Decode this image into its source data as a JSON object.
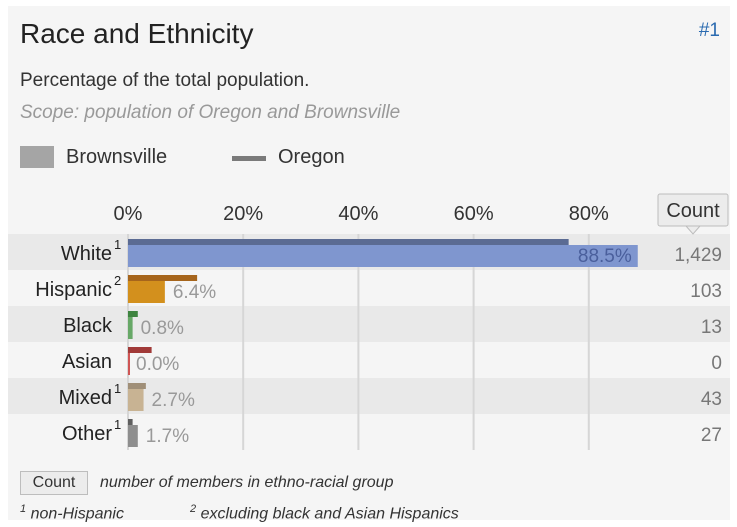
{
  "header": {
    "title": "Race and Ethnicity",
    "rank": "#1",
    "subtitle": "Percentage of the total population.",
    "scope": "Scope: population of Oregon and Brownsville"
  },
  "legend": {
    "primary": "Brownsville",
    "secondary": "Oregon"
  },
  "footer": {
    "count_chip": "Count",
    "count_note": "number of members in ethno-racial group",
    "note1_mark": "1",
    "note1_text": "non-Hispanic",
    "note2_mark": "2",
    "note2_text": "excluding black and Asian Hispanics"
  },
  "chart_data": {
    "type": "bar",
    "orientation": "horizontal",
    "categories": [
      "White",
      "Hispanic",
      "Black",
      "Asian",
      "Mixed",
      "Other"
    ],
    "category_footnotes": [
      "1",
      "2",
      "",
      "",
      "1",
      "1"
    ],
    "series": [
      {
        "name": "Brownsville",
        "values": [
          88.5,
          6.4,
          0.8,
          0.0,
          2.7,
          1.7
        ],
        "labels": [
          "88.5%",
          "6.4%",
          "0.8%",
          "0.0%",
          "2.7%",
          "1.7%"
        ],
        "colors": [
          "#7f96cf",
          "#d3901d",
          "#67a867",
          "#cf5554",
          "#c8b393",
          "#8e8e8e"
        ]
      },
      {
        "name": "Oregon",
        "values": [
          76.5,
          12.0,
          1.7,
          4.1,
          3.1,
          0.8
        ],
        "colors": [
          "#5b6b93",
          "#a6651c",
          "#3e8440",
          "#a13a38",
          "#a08f78",
          "#5f5f5f"
        ]
      }
    ],
    "counts_header": "Count",
    "counts": [
      "1,429",
      "103",
      "13",
      "0",
      "43",
      "27"
    ],
    "xlim": [
      0,
      100
    ],
    "xticks": [
      0,
      20,
      40,
      60,
      80
    ],
    "xtick_labels": [
      "0%",
      "20%",
      "40%",
      "60%",
      "80%"
    ],
    "grid": true
  }
}
